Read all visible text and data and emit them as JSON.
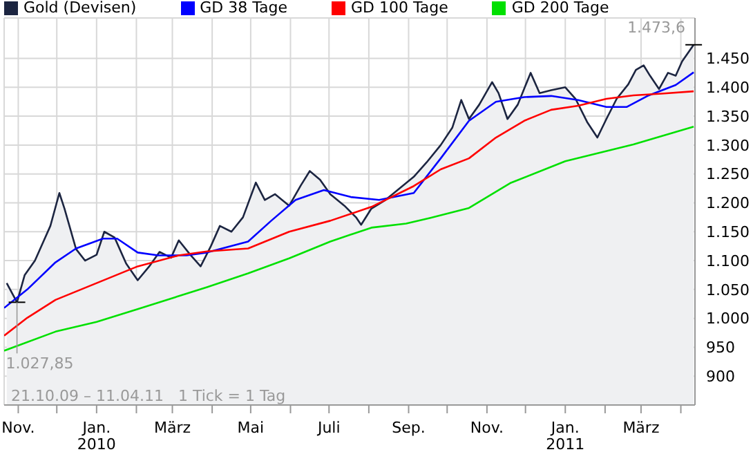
{
  "chart_data": {
    "type": "line",
    "legend": "top left",
    "grid": true,
    "marker": "none",
    "xlim": [
      "2009-10-21",
      "2011-04-12"
    ],
    "ylim": [
      850,
      1520
    ],
    "xticks": [
      {
        "value": "2009-11-01",
        "label": "Nov."
      },
      {
        "value": "2009-12-01",
        "label": null
      },
      {
        "value": "2010-01-01",
        "label": "Jan. 2010"
      },
      {
        "value": "2010-02-01",
        "label": null
      },
      {
        "value": "2010-03-01",
        "label": "März"
      },
      {
        "value": "2010-04-01",
        "label": null
      },
      {
        "value": "2010-05-01",
        "label": "Mai"
      },
      {
        "value": "2010-06-01",
        "label": null
      },
      {
        "value": "2010-07-01",
        "label": "Juli"
      },
      {
        "value": "2010-08-01",
        "label": null
      },
      {
        "value": "2010-09-01",
        "label": "Sep."
      },
      {
        "value": "2010-10-01",
        "label": null
      },
      {
        "value": "2010-11-01",
        "label": "Nov."
      },
      {
        "value": "2010-12-01",
        "label": null
      },
      {
        "value": "2011-01-01",
        "label": "Jan. 2011"
      },
      {
        "value": "2011-02-01",
        "label": null
      },
      {
        "value": "2011-03-01",
        "label": "März"
      },
      {
        "value": "2011-04-01",
        "label": null
      }
    ],
    "yticks": [
      900,
      {
        "value": 950,
        "label": "950"
      },
      {
        "value": 1000,
        "label": "1.000"
      },
      {
        "value": 1050,
        "label": "1.050"
      },
      {
        "value": 1100,
        "label": "1.100"
      },
      {
        "value": 1150,
        "label": "1.150"
      },
      {
        "value": 1200,
        "label": "1.200"
      },
      {
        "value": 1250,
        "label": "1.250"
      },
      {
        "value": 1300,
        "label": "1.300"
      },
      {
        "value": 1350,
        "label": "1.350"
      },
      {
        "value": 1400,
        "label": "1.400"
      },
      {
        "value": 1450,
        "label": "1.450"
      }
    ],
    "annotations": [
      {
        "text": "1.473,6",
        "x": "2011-04-11",
        "y": 1473.6
      },
      {
        "text": "1.027,85",
        "x": "2009-10-31",
        "y": 1027.85
      },
      "21.10.09 – 11.04.11   1 Tick = 1 Tag"
    ],
    "series": [
      {
        "name": "Gold (Devisen)",
        "type": "area",
        "color": "#1c2541",
        "x": [
          "2009-10-23",
          "2009-10-31",
          "2009-11-06",
          "2009-11-14",
          "2009-11-21",
          "2009-11-26",
          "2009-12-03",
          "2009-12-07",
          "2009-12-16",
          "2009-12-23",
          "2010-01-01",
          "2010-01-07",
          "2010-01-15",
          "2010-01-24",
          "2010-02-02",
          "2010-02-11",
          "2010-02-19",
          "2010-02-28",
          "2010-03-06",
          "2010-03-15",
          "2010-03-23",
          "2010-03-31",
          "2010-04-07",
          "2010-04-16",
          "2010-04-25",
          "2010-05-05",
          "2010-05-12",
          "2010-05-20",
          "2010-05-31",
          "2010-06-09",
          "2010-06-16",
          "2010-06-24",
          "2010-07-02",
          "2010-07-13",
          "2010-07-22",
          "2010-07-26",
          "2010-08-03",
          "2010-08-14",
          "2010-08-25",
          "2010-09-05",
          "2010-09-15",
          "2010-09-26",
          "2010-10-05",
          "2010-10-12",
          "2010-10-18",
          "2010-10-26",
          "2010-11-05",
          "2010-11-10",
          "2010-11-17",
          "2010-11-25",
          "2010-12-05",
          "2010-12-12",
          "2010-12-21",
          "2011-01-01",
          "2011-01-09",
          "2011-01-18",
          "2011-01-26",
          "2011-02-02",
          "2011-02-10",
          "2011-02-19",
          "2011-02-25",
          "2011-03-03",
          "2011-03-08",
          "2011-03-15",
          "2011-03-22",
          "2011-03-28",
          "2011-04-02",
          "2011-04-11"
        ],
        "values": [
          1061,
          1027.85,
          1075,
          1100,
          1135,
          1160,
          1217,
          1190,
          1120,
          1100,
          1110,
          1150,
          1140,
          1095,
          1066,
          1090,
          1115,
          1105,
          1135,
          1110,
          1090,
          1125,
          1160,
          1150,
          1175,
          1235,
          1205,
          1215,
          1195,
          1230,
          1255,
          1240,
          1215,
          1195,
          1175,
          1162,
          1190,
          1205,
          1225,
          1245,
          1270,
          1300,
          1330,
          1378,
          1345,
          1370,
          1409,
          1390,
          1345,
          1370,
          1425,
          1390,
          1395,
          1400,
          1380,
          1340,
          1313,
          1345,
          1380,
          1405,
          1430,
          1438,
          1420,
          1397,
          1425,
          1420,
          1445,
          1473.6
        ]
      },
      {
        "name": "GD 38 Tage",
        "color": "#0000ff",
        "x": [
          "2009-10-21",
          "2009-11-08",
          "2009-11-30",
          "2009-12-16",
          "2010-01-06",
          "2010-01-17",
          "2010-02-02",
          "2010-02-18",
          "2010-03-12",
          "2010-03-28",
          "2010-04-29",
          "2010-05-17",
          "2010-06-05",
          "2010-06-27",
          "2010-07-18",
          "2010-08-09",
          "2010-09-05",
          "2010-09-26",
          "2010-10-18",
          "2010-11-08",
          "2010-11-30",
          "2010-12-21",
          "2011-01-11",
          "2011-02-02",
          "2011-02-18",
          "2011-03-06",
          "2011-03-28",
          "2011-04-11"
        ],
        "values": [
          1018,
          1050,
          1097,
          1121,
          1138,
          1138,
          1114,
          1109,
          1109,
          1114,
          1133,
          1169,
          1205,
          1222,
          1210,
          1205,
          1217,
          1277,
          1342,
          1375,
          1383,
          1385,
          1378,
          1366,
          1366,
          1385,
          1404,
          1426
        ]
      },
      {
        "name": "GD 100 Tage",
        "color": "#ff0000",
        "x": [
          "2009-10-21",
          "2009-11-08",
          "2009-11-30",
          "2010-01-01",
          "2010-02-02",
          "2010-03-06",
          "2010-03-28",
          "2010-04-29",
          "2010-05-31",
          "2010-07-02",
          "2010-08-03",
          "2010-09-05",
          "2010-09-26",
          "2010-10-18",
          "2010-11-08",
          "2010-11-30",
          "2010-12-21",
          "2011-01-11",
          "2011-02-02",
          "2011-02-23",
          "2011-03-17",
          "2011-04-11"
        ],
        "values": [
          970,
          1001,
          1032,
          1061,
          1090,
          1109,
          1116,
          1121,
          1150,
          1169,
          1193,
          1229,
          1258,
          1277,
          1313,
          1342,
          1361,
          1368,
          1380,
          1386,
          1389,
          1393
        ]
      },
      {
        "name": "GD 200 Tage",
        "color": "#00e000",
        "x": [
          "2009-10-21",
          "2009-11-30",
          "2010-01-01",
          "2010-02-02",
          "2010-03-28",
          "2010-04-29",
          "2010-05-31",
          "2010-07-02",
          "2010-08-03",
          "2010-08-30",
          "2010-09-18",
          "2010-10-18",
          "2010-11-19",
          "2011-01-01",
          "2011-02-23",
          "2011-04-11"
        ],
        "values": [
          944,
          977,
          994,
          1016,
          1054,
          1078,
          1104,
          1133,
          1157,
          1164,
          1174,
          1191,
          1234,
          1272,
          1301,
          1332
        ]
      }
    ]
  }
}
